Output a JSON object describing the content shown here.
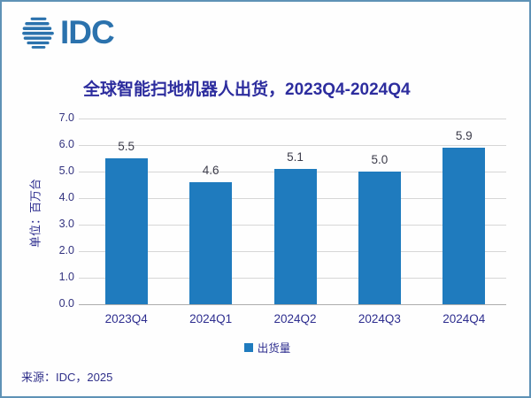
{
  "logo": {
    "text": "IDC",
    "icon": "globe-stripes-icon",
    "color": "#2b72ad"
  },
  "footer": {
    "source": "来源：IDC，2025"
  },
  "colors": {
    "bar": "#1f7bbe",
    "navy_text": "#2e2e8f",
    "title_text": "#2d2d9e",
    "frame_border": "#5e92b6",
    "gridline": "#d6d6d6",
    "axis_line": "#adadad"
  },
  "chart_data": {
    "type": "bar",
    "title": "全球智能扫地机器人出货，2023Q4-2024Q4",
    "categories": [
      "2023Q4",
      "2024Q1",
      "2024Q2",
      "2024Q3",
      "2024Q4"
    ],
    "values": [
      5.5,
      4.6,
      5.1,
      5.0,
      5.9
    ],
    "data_labels": [
      "5.5",
      "4.6",
      "5.1",
      "5.0",
      "5.9"
    ],
    "series_name": "出货量",
    "xlabel": "",
    "ylabel": "单位：百万台",
    "ylim": [
      0,
      7
    ],
    "ytick_step": 1,
    "ytick_decimals": 1,
    "grid": true,
    "legend_position": "bottom",
    "bar_color": "#1f7bbe"
  }
}
